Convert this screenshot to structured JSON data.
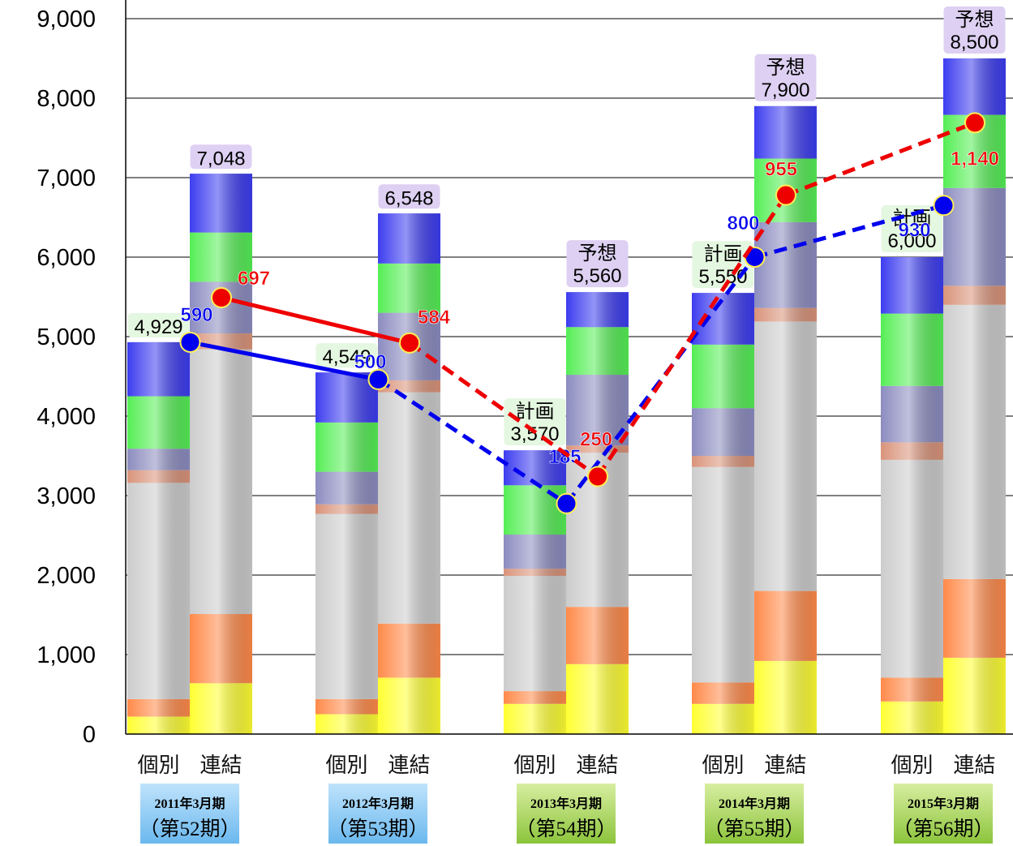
{
  "chart_data": {
    "type": "bar",
    "stacked": true,
    "ylim": [
      0,
      9000
    ],
    "yticks": [
      "0",
      "1,000",
      "2,000",
      "3,000",
      "4,000",
      "5,000",
      "6,000",
      "7,000",
      "8,000",
      "9,000"
    ],
    "grid": true,
    "category_labels": [
      "個別",
      "連結"
    ],
    "groups": [
      {
        "period_line1": "2011年3月期",
        "period_line2": "（第52期）",
        "bars": [
          {
            "label": "個別",
            "total": 4929,
            "total_label": "4,929",
            "box_label": "",
            "segments": [
              220,
              220,
              2720,
              160,
              270,
              660,
              680
            ]
          },
          {
            "label": "連結",
            "total": 7048,
            "total_label": "7,048",
            "box_label": "",
            "segments": [
              640,
              870,
              3330,
              200,
              650,
              620,
              740
            ]
          }
        ]
      },
      {
        "period_line1": "2012年3月期",
        "period_line2": "（第53期）",
        "bars": [
          {
            "label": "個別",
            "total": 4549,
            "total_label": "4,549",
            "box_label": "",
            "segments": [
              250,
              190,
              2330,
              120,
              410,
              620,
              630
            ]
          },
          {
            "label": "連結",
            "total": 6548,
            "total_label": "6,548",
            "box_label": "",
            "segments": [
              710,
              680,
              2910,
              150,
              850,
              620,
              630
            ]
          }
        ]
      },
      {
        "period_line1": "2013年3月期",
        "period_line2": "（第54期）",
        "bars": [
          {
            "label": "個別",
            "total": 3570,
            "total_label": "3,570",
            "box_label": "計画",
            "segments": [
              380,
              160,
              1450,
              90,
              430,
              620,
              440
            ]
          },
          {
            "label": "連結",
            "total": 5560,
            "total_label": "5,560",
            "box_label": "予想",
            "segments": [
              880,
              720,
              1940,
              90,
              890,
              600,
              440
            ]
          }
        ]
      },
      {
        "period_line1": "2014年3月期",
        "period_line2": "（第55期）",
        "bars": [
          {
            "label": "個別",
            "total": 5550,
            "total_label": "5,550",
            "box_label": "計画",
            "segments": [
              380,
              270,
              2710,
              140,
              600,
              800,
              650
            ]
          },
          {
            "label": "連結",
            "total": 7900,
            "total_label": "7,900",
            "box_label": "予想",
            "segments": [
              920,
              880,
              3390,
              170,
              1080,
              800,
              660
            ]
          }
        ]
      },
      {
        "period_line1": "2015年3月期",
        "period_line2": "（第56期）",
        "bars": [
          {
            "label": "個別",
            "total": 6000,
            "total_label": "6,000",
            "box_label": "計画",
            "segments": [
              410,
              300,
              2740,
              220,
              710,
              910,
              710
            ]
          },
          {
            "label": "連結",
            "total": 8500,
            "total_label": "8,500",
            "box_label": "予想",
            "segments": [
              960,
              990,
              3450,
              240,
              1230,
              920,
              710
            ]
          }
        ]
      }
    ],
    "segment_colors": [
      "#ffff33",
      "#ff8a4a",
      "#cccccc",
      "#d9937a",
      "#8c8cc0",
      "#55ee55",
      "#3d3df0"
    ],
    "series": [
      {
        "values": [
          590,
          500,
          185,
          800,
          930
        ],
        "labels": [
          "590",
          "500",
          "185",
          "800",
          "930"
        ],
        "plot_y": [
          4929,
          4460,
          2900,
          6000,
          6650
        ],
        "color": "#0000ee",
        "attach": "個別"
      },
      {
        "values": [
          697,
          584,
          250,
          955,
          1140
        ],
        "labels": [
          "697",
          "584",
          "250",
          "955",
          "1,140"
        ],
        "plot_y": [
          5490,
          4920,
          3240,
          6780,
          7690
        ],
        "color": "#ee0000",
        "attach": "連結"
      }
    ]
  }
}
